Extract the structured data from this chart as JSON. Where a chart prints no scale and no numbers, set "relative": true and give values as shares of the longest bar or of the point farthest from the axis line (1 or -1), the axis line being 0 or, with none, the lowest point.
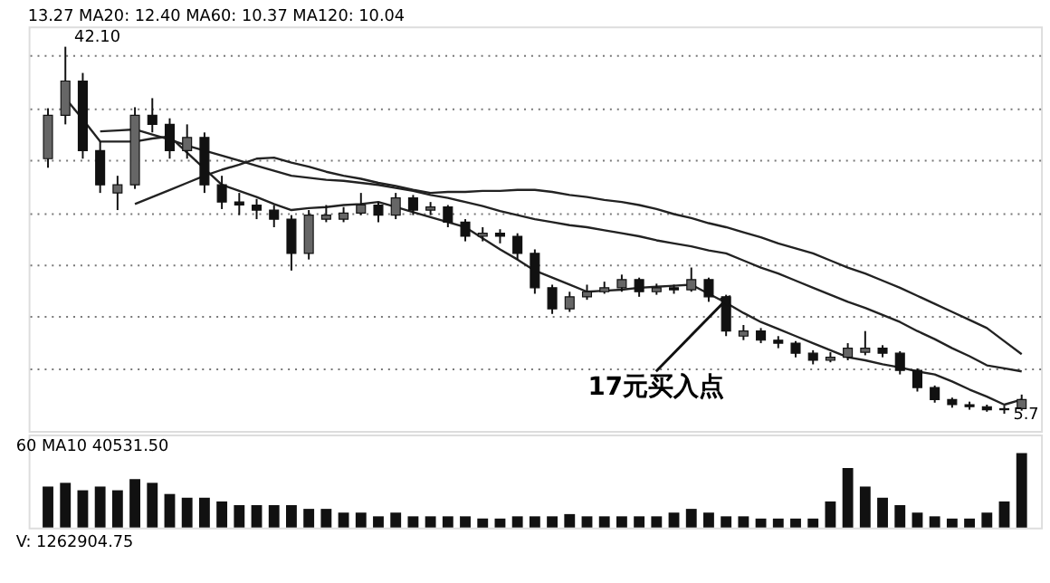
{
  "chart_data": [
    {
      "type": "candlestick",
      "title": "13.27 MA20: 12.40 MA60: 10.37 MA120: 10.04",
      "categories": [
        null,
        null,
        null,
        null,
        null,
        null,
        null,
        null,
        null,
        null,
        null,
        null,
        null,
        null,
        null,
        null,
        null,
        null,
        null,
        null,
        null,
        null,
        null,
        null,
        null,
        null,
        null,
        null,
        null,
        null,
        null,
        null,
        null,
        null,
        null,
        null,
        null,
        null,
        null,
        null,
        null,
        null,
        null,
        null,
        null,
        null,
        null,
        null,
        null,
        null,
        null,
        null,
        null,
        null,
        null,
        null,
        null
      ],
      "ohlc": [
        [
          31.0,
          36.0,
          30.1,
          35.3
        ],
        [
          35.3,
          42.1,
          34.4,
          38.7
        ],
        [
          38.7,
          39.5,
          31.0,
          31.8
        ],
        [
          31.8,
          32.7,
          27.6,
          28.4
        ],
        [
          27.6,
          29.3,
          25.9,
          28.4
        ],
        [
          28.4,
          36.1,
          28.0,
          35.3
        ],
        [
          35.3,
          37.0,
          33.6,
          34.4
        ],
        [
          34.4,
          35.0,
          31.0,
          31.8
        ],
        [
          31.8,
          34.4,
          31.0,
          33.1
        ],
        [
          33.1,
          33.6,
          27.6,
          28.4
        ],
        [
          28.4,
          29.3,
          26.0,
          26.7
        ],
        [
          26.7,
          27.6,
          25.4,
          26.4
        ],
        [
          26.4,
          27.0,
          25.0,
          25.9
        ],
        [
          25.9,
          26.4,
          24.2,
          25.0
        ],
        [
          25.0,
          25.4,
          19.9,
          21.6
        ],
        [
          21.6,
          25.9,
          21.0,
          25.4
        ],
        [
          25.0,
          26.4,
          24.7,
          25.4
        ],
        [
          25.0,
          26.2,
          24.7,
          25.6
        ],
        [
          25.6,
          27.6,
          25.4,
          26.4
        ],
        [
          26.4,
          26.7,
          24.7,
          25.4
        ],
        [
          25.4,
          27.6,
          25.0,
          27.1
        ],
        [
          27.1,
          27.4,
          25.4,
          25.9
        ],
        [
          25.9,
          26.7,
          25.4,
          26.2
        ],
        [
          26.2,
          26.4,
          24.2,
          24.7
        ],
        [
          24.7,
          25.0,
          22.8,
          23.3
        ],
        [
          23.3,
          24.2,
          22.8,
          23.6
        ],
        [
          23.6,
          24.0,
          22.6,
          23.3
        ],
        [
          23.3,
          23.6,
          21.0,
          21.6
        ],
        [
          21.6,
          22.0,
          17.6,
          18.2
        ],
        [
          18.2,
          18.5,
          15.6,
          16.1
        ],
        [
          16.1,
          17.8,
          15.8,
          17.3
        ],
        [
          17.3,
          18.5,
          17.0,
          17.8
        ],
        [
          17.8,
          18.8,
          17.6,
          18.2
        ],
        [
          18.2,
          19.5,
          17.8,
          19.0
        ],
        [
          19.0,
          19.2,
          17.3,
          17.8
        ],
        [
          17.8,
          18.6,
          17.5,
          18.2
        ],
        [
          18.2,
          18.5,
          17.6,
          18.0
        ],
        [
          18.0,
          20.2,
          17.8,
          19.0
        ],
        [
          19.0,
          19.2,
          16.8,
          17.3
        ],
        [
          17.3,
          17.5,
          13.4,
          13.9
        ],
        [
          13.4,
          14.5,
          13.0,
          13.9
        ],
        [
          13.9,
          14.2,
          12.7,
          13.0
        ],
        [
          13.0,
          13.4,
          12.2,
          12.7
        ],
        [
          12.7,
          12.9,
          11.3,
          11.7
        ],
        [
          11.7,
          12.0,
          10.6,
          11.0
        ],
        [
          11.0,
          11.8,
          10.8,
          11.3
        ],
        [
          11.3,
          12.7,
          11.0,
          12.2
        ],
        [
          11.8,
          13.9,
          11.5,
          12.2
        ],
        [
          12.2,
          12.5,
          11.3,
          11.7
        ],
        [
          11.7,
          11.9,
          9.6,
          10.0
        ],
        [
          10.0,
          10.2,
          7.9,
          8.3
        ],
        [
          8.3,
          8.5,
          6.8,
          7.1
        ],
        [
          7.1,
          7.3,
          6.3,
          6.6
        ],
        [
          6.6,
          6.9,
          6.1,
          6.4
        ],
        [
          6.4,
          6.6,
          5.9,
          6.1
        ],
        [
          6.1,
          6.5,
          5.7,
          6.2
        ],
        [
          6.2,
          7.6,
          6.0,
          7.1
        ]
      ],
      "series": [
        {
          "type": "line",
          "color": "#222222",
          "values": [
            null,
            null,
            null,
            null,
            null,
            26.5,
            27.2,
            27.9,
            28.6,
            29.3,
            29.9,
            30.4,
            31.0,
            31.1,
            30.6,
            30.2,
            29.7,
            29.3,
            29.0,
            28.6,
            28.3,
            27.9,
            27.6,
            27.7,
            27.7,
            27.8,
            27.8,
            27.9,
            27.9,
            27.7,
            27.4,
            27.2,
            26.9,
            26.7,
            26.4,
            26.0,
            25.5,
            25.1,
            24.6,
            24.2,
            23.7,
            23.2,
            22.6,
            22.1,
            21.6,
            20.9,
            20.2,
            19.6,
            18.9,
            18.2,
            17.4,
            16.6,
            15.8,
            15.0,
            14.2,
            12.9,
            11.6
          ]
        },
        {
          "type": "line",
          "color": "#222222",
          "values": [
            null,
            null,
            null,
            33.7,
            33.8,
            33.9,
            33.4,
            32.9,
            32.3,
            31.8,
            31.3,
            30.8,
            30.3,
            29.8,
            29.3,
            29.1,
            28.9,
            28.8,
            28.6,
            28.4,
            28.1,
            27.8,
            27.4,
            27.1,
            26.7,
            26.3,
            25.8,
            25.4,
            25.0,
            24.7,
            24.4,
            24.2,
            23.9,
            23.6,
            23.3,
            22.9,
            22.6,
            22.3,
            21.9,
            21.6,
            20.9,
            20.2,
            19.6,
            18.9,
            18.2,
            17.5,
            16.8,
            16.2,
            15.5,
            14.8,
            13.9,
            13.1,
            12.2,
            11.4,
            10.5,
            10.2,
            9.9
          ]
        },
        {
          "type": "line",
          "color": "#222222",
          "values": [
            null,
            37.0,
            34.9,
            32.7,
            32.7,
            32.7,
            33.0,
            33.2,
            31.6,
            30.0,
            28.4,
            27.8,
            27.2,
            26.5,
            25.9,
            26.1,
            26.2,
            26.4,
            26.5,
            26.7,
            26.2,
            25.7,
            25.2,
            24.7,
            24.2,
            23.1,
            22.0,
            21.0,
            19.9,
            19.2,
            18.5,
            17.8,
            17.9,
            18.0,
            18.2,
            18.3,
            18.4,
            18.5,
            17.6,
            16.7,
            15.7,
            14.8,
            14.1,
            13.4,
            12.7,
            12.0,
            11.3,
            11.0,
            10.6,
            10.3,
            9.9,
            9.6,
            8.9,
            8.1,
            7.4,
            6.6,
            7.1
          ]
        }
      ],
      "annotations": [
        "42.10",
        "5.7",
        {
          "text": "17元买入点",
          "y": 17
        }
      ],
      "ylim": [
        4.0,
        44.1
      ],
      "yticks": [
        {
          "value": 41.2,
          "label": null
        },
        {
          "value": 35.9,
          "label": null
        },
        {
          "value": 30.8,
          "label": null
        },
        {
          "value": 25.5,
          "label": null
        },
        {
          "value": 20.4,
          "label": null
        },
        {
          "value": 15.3,
          "label": null
        },
        {
          "value": 10.1,
          "label": null
        }
      ],
      "grid": "y",
      "tick_labels": false,
      "line_style": "solid",
      "marker": "none"
    },
    {
      "type": "bar",
      "relative": true,
      "color": "#111111",
      "categories": [
        null,
        null,
        null,
        null,
        null,
        null,
        null,
        null,
        null,
        null,
        null,
        null,
        null,
        null,
        null,
        null,
        null,
        null,
        null,
        null,
        null,
        null,
        null,
        null,
        null,
        null,
        null,
        null,
        null,
        null,
        null,
        null,
        null,
        null,
        null,
        null,
        null,
        null,
        null,
        null,
        null,
        null,
        null,
        null,
        null,
        null,
        null,
        null,
        null,
        null,
        null,
        null,
        null,
        null,
        null,
        null,
        null
      ],
      "values": [
        0.55,
        0.6,
        0.5,
        0.55,
        0.5,
        0.65,
        0.6,
        0.45,
        0.4,
        0.4,
        0.35,
        0.3,
        0.3,
        0.3,
        0.3,
        0.25,
        0.25,
        0.2,
        0.2,
        0.15,
        0.2,
        0.15,
        0.15,
        0.15,
        0.15,
        0.12,
        0.12,
        0.15,
        0.15,
        0.15,
        0.18,
        0.15,
        0.15,
        0.15,
        0.15,
        0.15,
        0.2,
        0.25,
        0.2,
        0.15,
        0.15,
        0.12,
        0.12,
        0.12,
        0.12,
        0.35,
        0.8,
        0.55,
        0.4,
        0.3,
        0.2,
        0.15,
        0.12,
        0.12,
        0.2,
        0.35,
        1
      ],
      "annotations": [
        "60 MA10 40531.50",
        "V: 1262904.75"
      ],
      "tick_labels": false
    }
  ]
}
